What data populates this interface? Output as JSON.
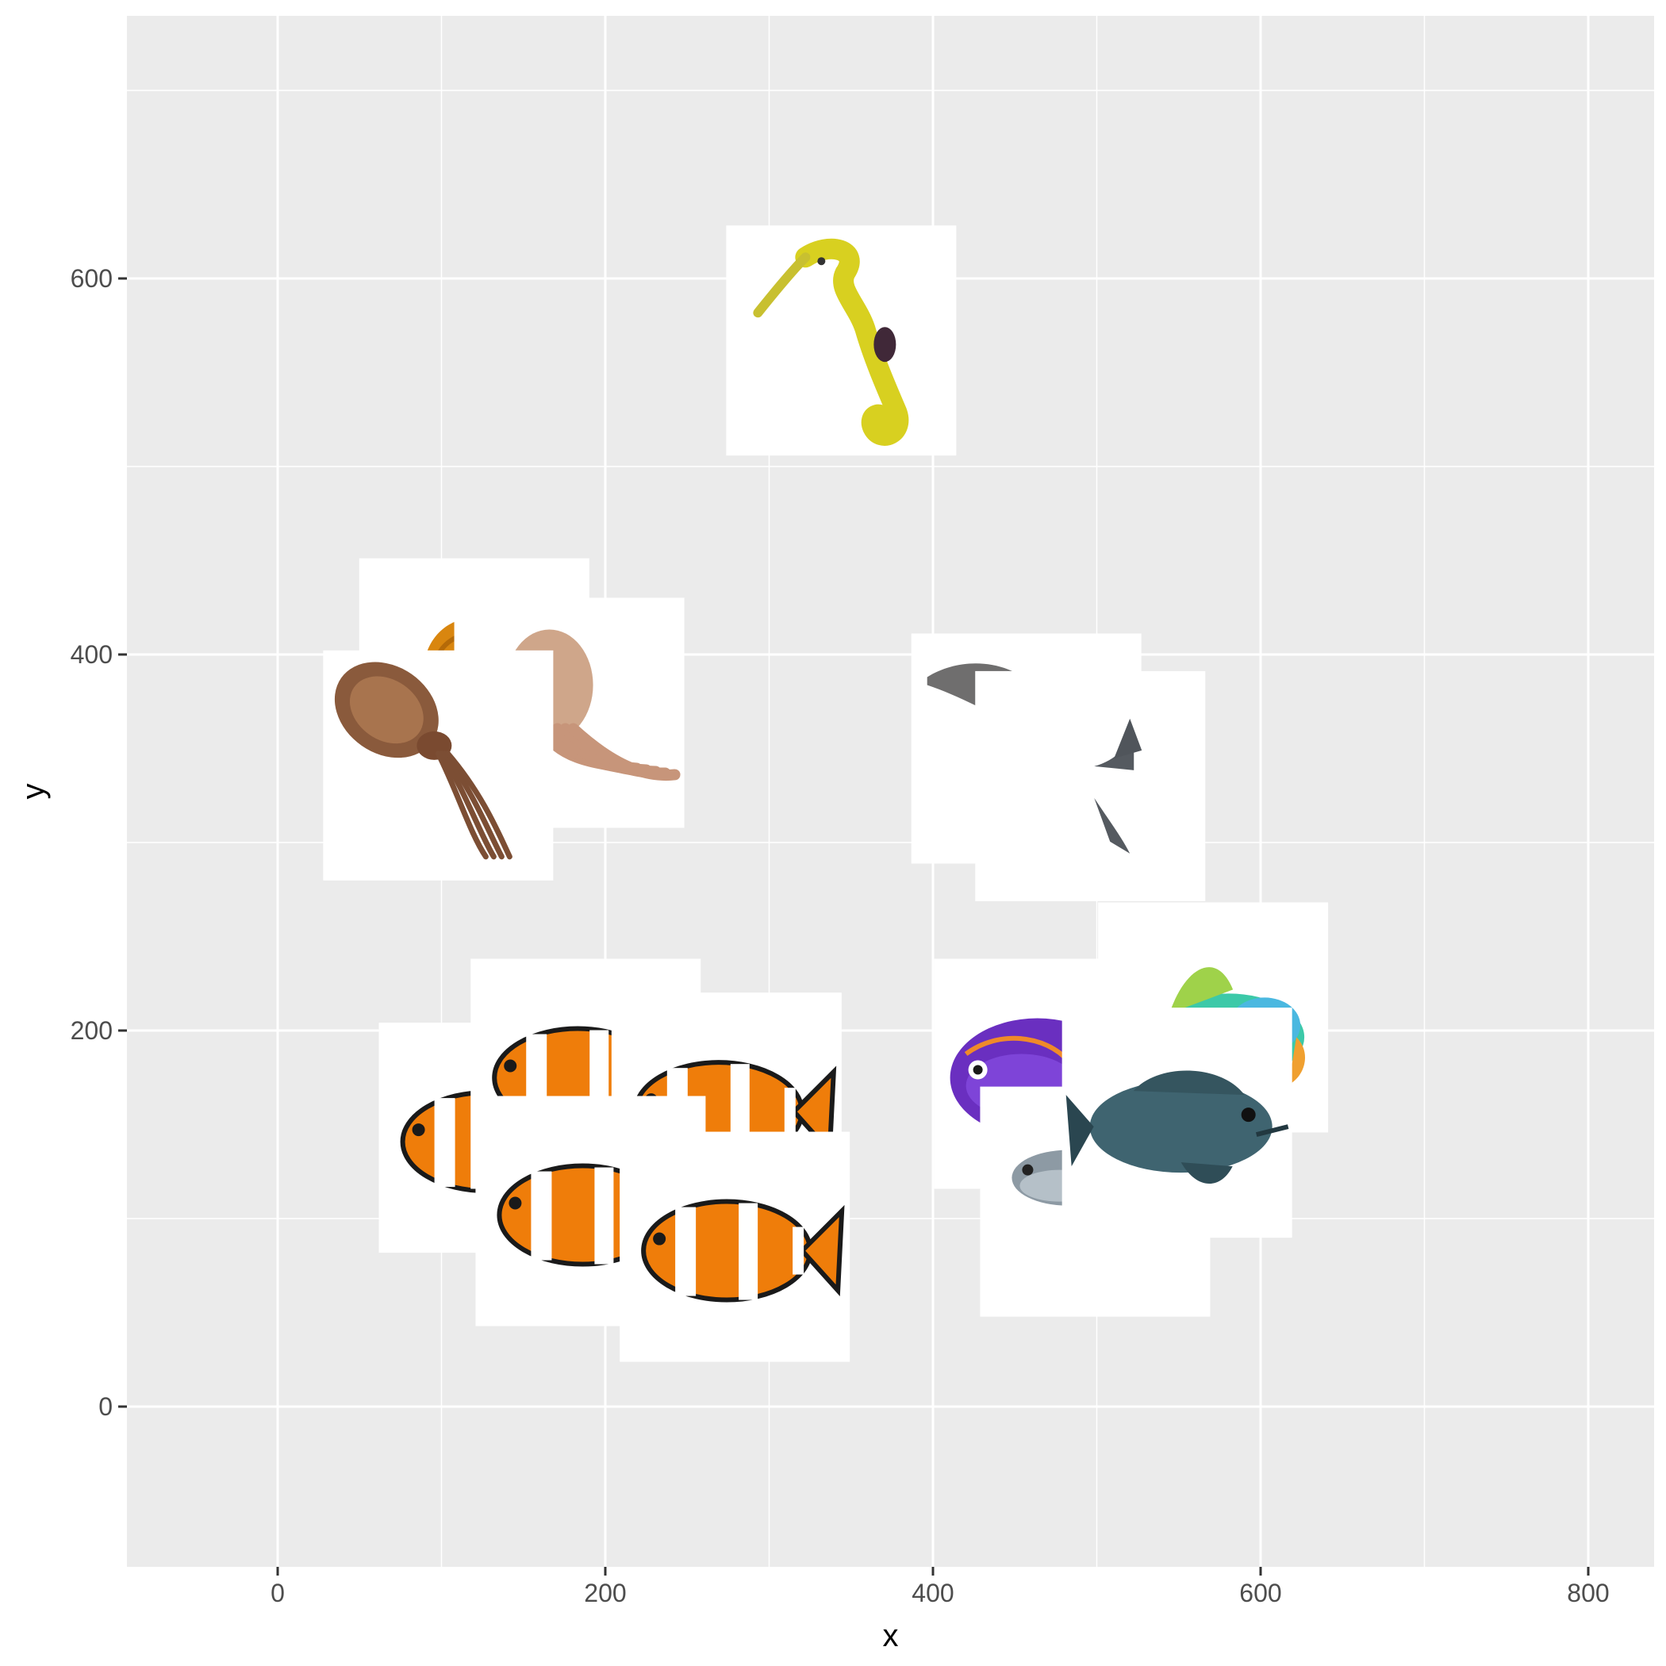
{
  "chart_data": {
    "type": "scatter",
    "title": "",
    "xlabel": "x",
    "ylabel": "y",
    "xlim": [
      -92,
      842
    ],
    "ylim": [
      -83,
      733
    ],
    "x_ticks": [
      0,
      200,
      400,
      600,
      800
    ],
    "y_ticks": [
      0,
      200,
      400,
      600
    ],
    "x_tick_labels": [
      "0",
      "200",
      "400",
      "600",
      "800"
    ],
    "y_tick_labels": [
      "0",
      "200",
      "400",
      "600"
    ],
    "grid": true,
    "panel_background": "#ebebeb",
    "grid_color": "#ffffff",
    "points": [
      {
        "icon": "seahorse-icon",
        "x": 344,
        "y": 567
      },
      {
        "icon": "jellyfish-icon",
        "x": 120,
        "y": 390
      },
      {
        "icon": "octopus-icon",
        "x": 178,
        "y": 369
      },
      {
        "icon": "cuttlefish-icon",
        "x": 98,
        "y": 341
      },
      {
        "icon": "dolphin-icon",
        "x": 457,
        "y": 350
      },
      {
        "icon": "shark-icon",
        "x": 496,
        "y": 330
      },
      {
        "icon": "parrotfish-icon",
        "x": 571,
        "y": 207
      },
      {
        "icon": "clownfish-icon",
        "x": 132,
        "y": 143
      },
      {
        "icon": "clownfish-icon",
        "x": 188,
        "y": 177
      },
      {
        "icon": "clownfish-icon",
        "x": 274,
        "y": 159
      },
      {
        "icon": "clownfish-icon",
        "x": 191,
        "y": 104
      },
      {
        "icon": "clownfish-icon",
        "x": 279,
        "y": 85
      },
      {
        "icon": "blue-tang-icon",
        "x": 471,
        "y": 177
      },
      {
        "icon": "tilapia-icon",
        "x": 499,
        "y": 109
      },
      {
        "icon": "grouper-icon",
        "x": 549,
        "y": 151
      }
    ]
  }
}
